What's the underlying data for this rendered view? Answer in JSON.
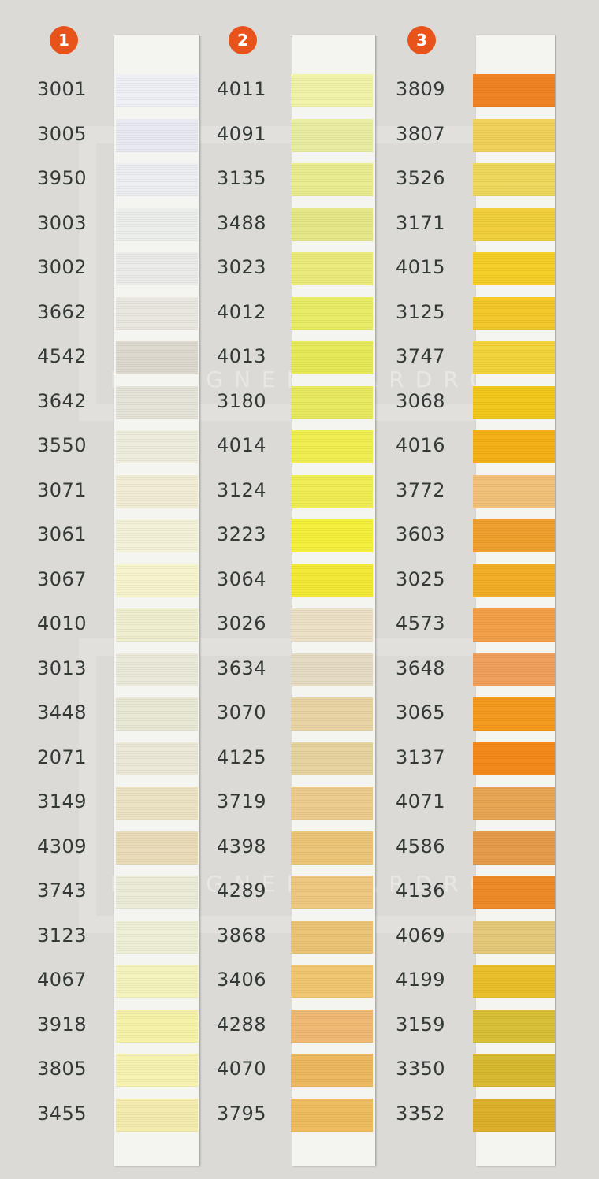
{
  "watermark": "DESIGNER WARDROBE",
  "columns": [
    {
      "number": "1",
      "codes": [
        "3001",
        "3005",
        "3950",
        "3003",
        "3002",
        "3662",
        "4542",
        "3642",
        "3550",
        "3071",
        "3061",
        "3067",
        "4010",
        "3013",
        "3448",
        "2071",
        "3149",
        "4309",
        "3743",
        "3123",
        "4067",
        "3918",
        "3805",
        "3455"
      ],
      "colors": [
        "#eef0f6",
        "#e9eaf1",
        "#eceef2",
        "#eceeec",
        "#ebecea",
        "#e9e7df",
        "#ddd9cf",
        "#e6e4d8",
        "#eeecdc",
        "#f1ecd4",
        "#f3f2d8",
        "#f5f4cc",
        "#efefcf",
        "#ebeada",
        "#e9e8d4",
        "#ebe8d8",
        "#ece3c4",
        "#eadcb8",
        "#ecebd8",
        "#efefd6",
        "#f4f3be",
        "#f6f3a8",
        "#f6f2b2",
        "#f4ecae"
      ]
    },
    {
      "number": "2",
      "codes": [
        "4011",
        "4091",
        "3135",
        "3488",
        "3023",
        "4012",
        "4013",
        "3180",
        "4014",
        "3124",
        "3223",
        "3064",
        "3026",
        "3634",
        "3070",
        "4125",
        "3719",
        "4398",
        "4289",
        "3868",
        "3406",
        "4288",
        "4070",
        "3795"
      ],
      "colors": [
        "#f1f3a9",
        "#e9eda1",
        "#eaec90",
        "#e6e888",
        "#eaeb7a",
        "#e8ec66",
        "#e6ea58",
        "#e9ea60",
        "#f0ef52",
        "#f0ee55",
        "#f4f03c",
        "#f2ea36",
        "#ece0c6",
        "#e6dcc4",
        "#e9d5a4",
        "#e6d49e",
        "#eecc8e",
        "#ecc578",
        "#eec880",
        "#ecc476",
        "#f0c670",
        "#f0b974",
        "#ecb860",
        "#eebd60"
      ]
    },
    {
      "number": "3",
      "codes": [
        "3809",
        "3807",
        "3526",
        "3171",
        "4015",
        "3125",
        "3747",
        "3068",
        "4016",
        "3772",
        "3603",
        "3025",
        "4573",
        "3648",
        "3065",
        "3137",
        "4071",
        "4586",
        "4136",
        "4069",
        "4199",
        "3159",
        "3350",
        "3352"
      ],
      "colors": [
        "#f08424",
        "#f0d25a",
        "#f0d85c",
        "#f2cf3c",
        "#f4cf28",
        "#f2c82a",
        "#f2d43c",
        "#f2c81c",
        "#f4b016",
        "#f2c27a",
        "#f0a02e",
        "#f2ae26",
        "#f4a048",
        "#f0a05c",
        "#f49a1e",
        "#f58a1c",
        "#e8a554",
        "#e69c4c",
        "#ef8a28",
        "#e6c87a",
        "#e9c02c",
        "#d8c038",
        "#d8ba30",
        "#dcb02a"
      ]
    }
  ]
}
